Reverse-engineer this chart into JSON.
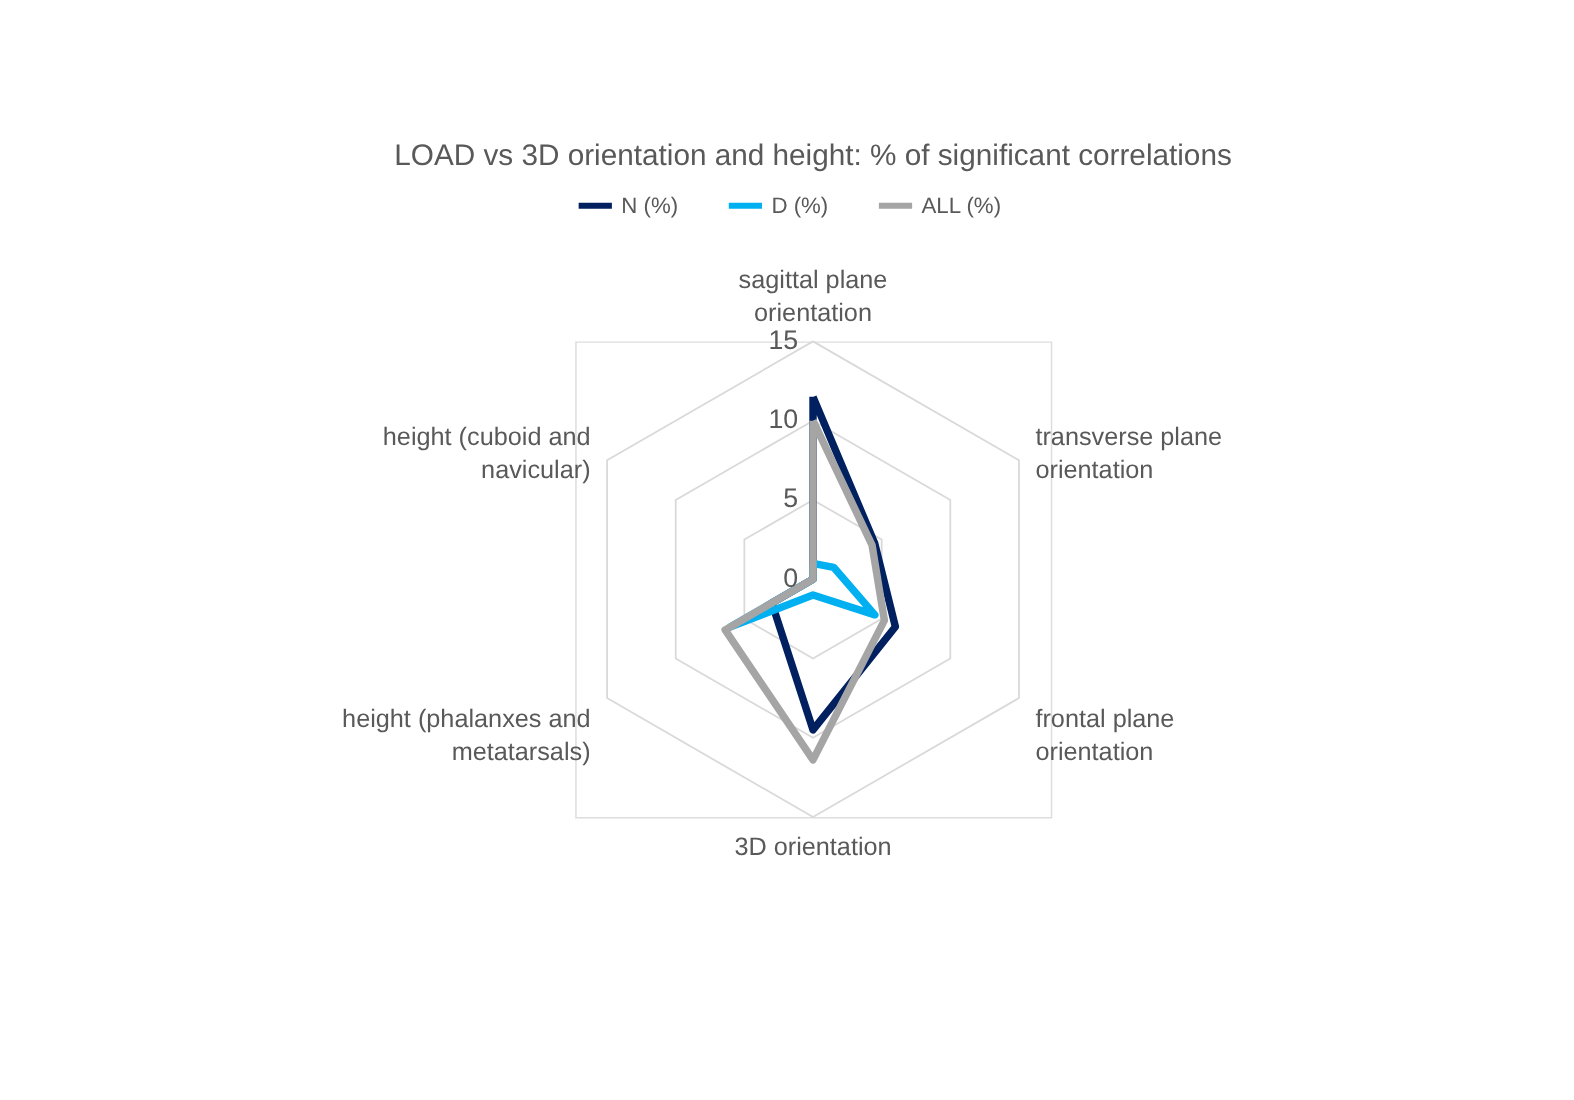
{
  "chart_data": {
    "type": "radar",
    "title": "LOAD vs 3D orientation and height: % of significant correlations",
    "categories": [
      "sagittal plane orientation",
      "transverse plane orientation",
      "frontal plane orientation",
      "3D orientation",
      "height (phalanxes and metatarsals)",
      "height (cuboid and navicular)"
    ],
    "series": [
      {
        "name": "N (%)",
        "color": "#002060",
        "values": [
          11.5,
          4.5,
          6,
          9.5,
          3,
          0
        ]
      },
      {
        "name": "D (%)",
        "color": "#00b0f0",
        "values": [
          1,
          1.5,
          4.5,
          1,
          6,
          0
        ]
      },
      {
        "name": "ALL (%)",
        "color": "#a5a5a5",
        "values": [
          10,
          4.3,
          5.2,
          11.4,
          6.4,
          0
        ]
      }
    ],
    "ylim": [
      0,
      15
    ],
    "yticks": [
      0,
      5,
      10,
      15
    ],
    "grid": true,
    "legend": "top"
  }
}
